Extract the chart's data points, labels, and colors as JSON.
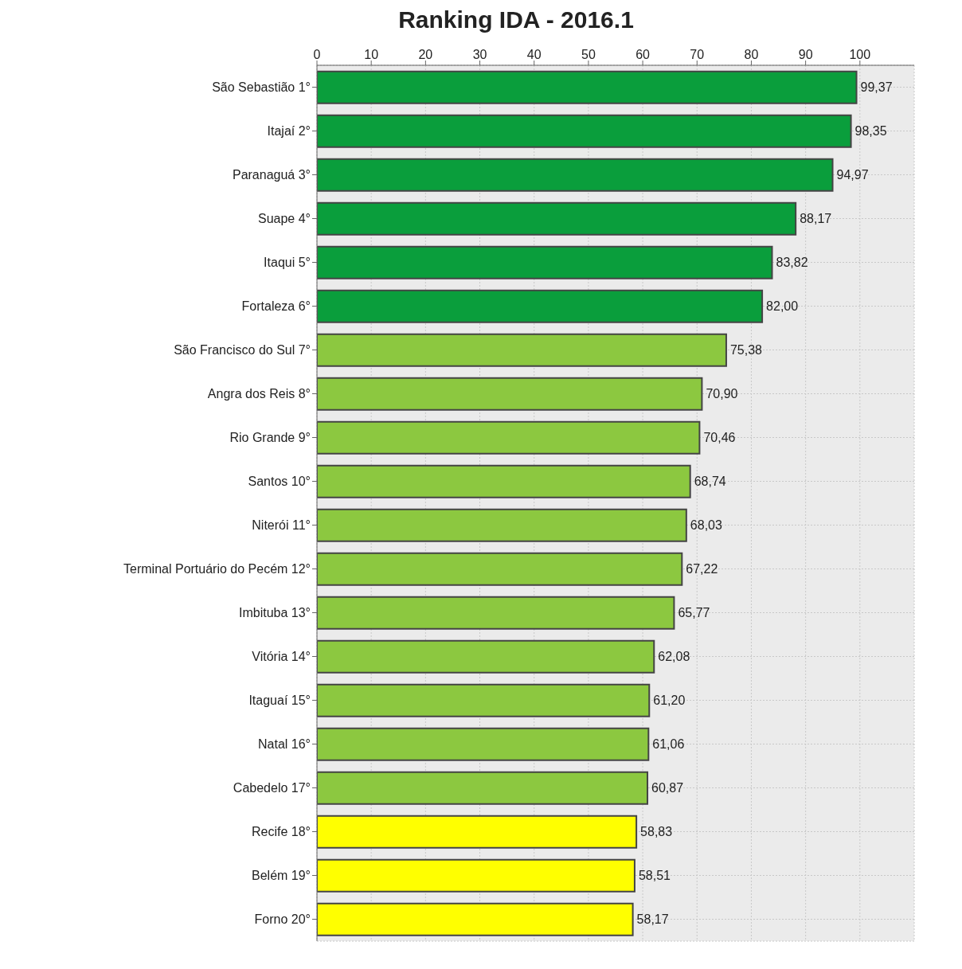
{
  "chart_data": {
    "type": "bar",
    "orientation": "horizontal",
    "title": "Ranking IDA -  2016.1",
    "categories": [
      "São Sebastião 1°",
      "Itajaí 2°",
      "Paranaguá 3°",
      "Suape 4°",
      "Itaqui 5°",
      "Fortaleza 6°",
      "São Francisco do Sul 7°",
      "Angra dos Reis 8°",
      "Rio Grande 9°",
      "Santos 10°",
      "Niterói 11°",
      "Terminal Portuário do Pecém 12°",
      "Imbituba 13°",
      "Vitória 14°",
      "Itaguaí 15°",
      "Natal 16°",
      "Cabedelo 17°",
      "Recife 18°",
      "Belém 19°",
      "Forno 20°"
    ],
    "values": [
      99.37,
      98.35,
      94.97,
      88.17,
      83.82,
      82.0,
      75.38,
      70.9,
      70.46,
      68.74,
      68.03,
      67.22,
      65.77,
      62.08,
      61.2,
      61.06,
      60.87,
      58.83,
      58.51,
      58.17
    ],
    "value_labels": [
      "99,37",
      "98,35",
      "94,97",
      "88,17",
      "83,82",
      "82,00",
      "75,38",
      "70,90",
      "70,46",
      "68,74",
      "68,03",
      "67,22",
      "65,77",
      "62,08",
      "61,20",
      "61,06",
      "60,87",
      "58,83",
      "58,51",
      "58,17"
    ],
    "colors": [
      "#0a9e3c",
      "#0a9e3c",
      "#0a9e3c",
      "#0a9e3c",
      "#0a9e3c",
      "#0a9e3c",
      "#8cc840",
      "#8cc840",
      "#8cc840",
      "#8cc840",
      "#8cc840",
      "#8cc840",
      "#8cc840",
      "#8cc840",
      "#8cc840",
      "#8cc840",
      "#8cc840",
      "#ffff00",
      "#ffff00",
      "#ffff00"
    ],
    "xlim": [
      0,
      110
    ],
    "xticks": [
      0,
      10,
      20,
      30,
      40,
      50,
      60,
      70,
      80,
      90,
      100
    ],
    "grid": true
  }
}
